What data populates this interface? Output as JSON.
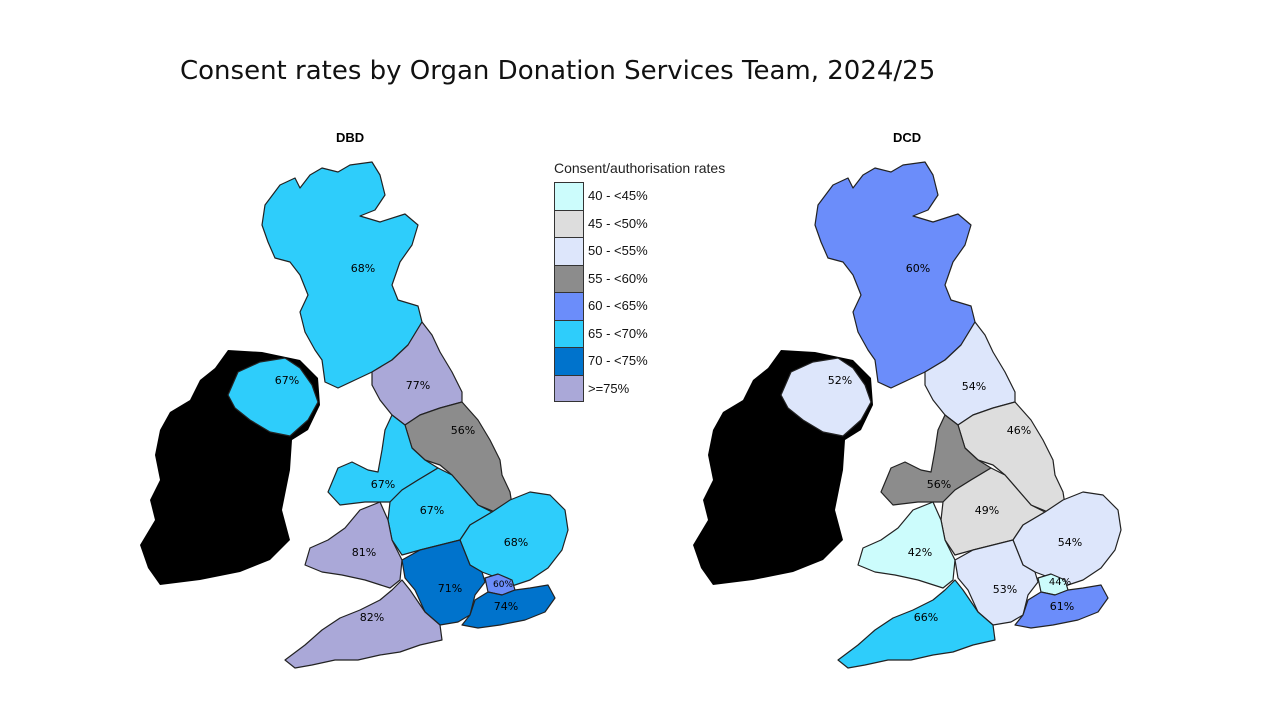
{
  "title": "Consent rates by Organ Donation Services Team, 2024/25",
  "maps": {
    "dbd": {
      "title": "DBD",
      "regions": {
        "scotland": "68%",
        "northern_ireland": "67%",
        "north_east": "77%",
        "yorkshire": "56%",
        "north_west": "67%",
        "midlands": "67%",
        "south_wales": "81%",
        "eastern": "68%",
        "south_central": "71%",
        "london": "60%",
        "south_east": "74%",
        "south_west": "82%"
      }
    },
    "dcd": {
      "title": "DCD",
      "regions": {
        "scotland": "60%",
        "northern_ireland": "52%",
        "north_east": "54%",
        "yorkshire": "46%",
        "north_west": "56%",
        "midlands": "49%",
        "south_wales": "42%",
        "eastern": "54%",
        "south_central": "53%",
        "london": "44%",
        "south_east": "61%",
        "south_west": "66%"
      }
    }
  },
  "legend": {
    "title": "Consent/authorisation rates",
    "items": [
      {
        "label": "40 - <45%",
        "color": "#ccfcfc"
      },
      {
        "label": "45 - <50%",
        "color": "#dddddd"
      },
      {
        "label": "50 - <55%",
        "color": "#dde6fb"
      },
      {
        "label": "55 - <60%",
        "color": "#8c8c8c"
      },
      {
        "label": "60 - <65%",
        "color": "#6b8dfa"
      },
      {
        "label": "65 - <70%",
        "color": "#2ecdfb"
      },
      {
        "label": "70 - <75%",
        "color": "#0073cc"
      },
      {
        "label": ">=75%",
        "color": "#aaa8d8"
      }
    ]
  }
}
